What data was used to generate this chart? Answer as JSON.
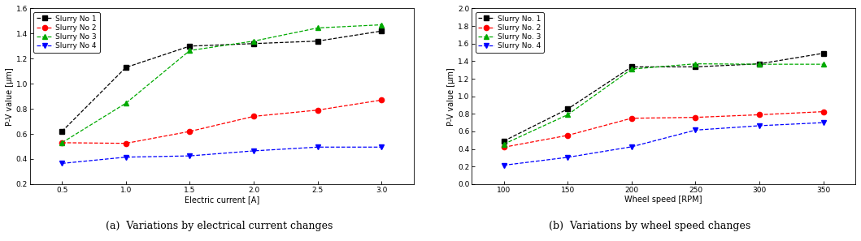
{
  "chart_a": {
    "xlabel": "Electric current [A]",
    "ylabel": "P-V value [μm]",
    "caption": "(a)  Variations by electrical current changes",
    "xlim": [
      0.25,
      3.25
    ],
    "ylim": [
      0.2,
      1.6
    ],
    "xticks": [
      0.5,
      1.0,
      1.5,
      2.0,
      2.5,
      3.0
    ],
    "yticks": [
      0.2,
      0.4,
      0.6,
      0.8,
      1.0,
      1.2,
      1.4,
      1.6
    ],
    "series": [
      {
        "label": "Slurry No 1",
        "x": [
          0.5,
          1.0,
          1.5,
          2.0,
          2.5,
          3.0
        ],
        "y": [
          0.62,
          1.13,
          1.3,
          1.32,
          1.34,
          1.42
        ],
        "color": "#000000",
        "marker": "s",
        "linestyle": "--"
      },
      {
        "label": "Slurry No 2",
        "x": [
          0.5,
          1.0,
          1.5,
          2.0,
          2.5,
          3.0
        ],
        "y": [
          0.53,
          0.525,
          0.62,
          0.74,
          0.79,
          0.87
        ],
        "color": "#ff0000",
        "marker": "o",
        "linestyle": "--"
      },
      {
        "label": "Slurry No 3",
        "x": [
          0.5,
          1.0,
          1.5,
          2.0,
          2.5,
          3.0
        ],
        "y": [
          0.53,
          0.845,
          1.265,
          1.34,
          1.445,
          1.47
        ],
        "color": "#00aa00",
        "marker": "^",
        "linestyle": "--"
      },
      {
        "label": "Slurry No 4",
        "x": [
          0.5,
          1.0,
          1.5,
          2.0,
          2.5,
          3.0
        ],
        "y": [
          0.365,
          0.415,
          0.425,
          0.465,
          0.495,
          0.495
        ],
        "color": "#0000ff",
        "marker": "v",
        "linestyle": "--"
      }
    ]
  },
  "chart_b": {
    "xlabel": "Wheel speed [RPM]",
    "ylabel": "P-V value [μm]",
    "caption": "(b)  Variations by wheel speed changes",
    "xlim": [
      75,
      375
    ],
    "ylim": [
      0.0,
      2.0
    ],
    "xticks": [
      100,
      150,
      200,
      250,
      300,
      350
    ],
    "yticks": [
      0.0,
      0.2,
      0.4,
      0.6,
      0.8,
      1.0,
      1.2,
      1.4,
      1.6,
      1.8,
      2.0
    ],
    "series": [
      {
        "label": "Slurry No. 1",
        "x": [
          100,
          150,
          200,
          250,
          300,
          350
        ],
        "y": [
          0.49,
          0.855,
          1.335,
          1.335,
          1.37,
          1.49
        ],
        "color": "#000000",
        "marker": "s",
        "linestyle": "--"
      },
      {
        "label": "Slurry No. 2",
        "x": [
          100,
          150,
          200,
          250,
          300,
          350
        ],
        "y": [
          0.42,
          0.555,
          0.75,
          0.76,
          0.79,
          0.825
        ],
        "color": "#ff0000",
        "marker": "o",
        "linestyle": "--"
      },
      {
        "label": "Slurry No. 3",
        "x": [
          100,
          150,
          200,
          250,
          300,
          350
        ],
        "y": [
          0.455,
          0.79,
          1.31,
          1.37,
          1.365,
          1.365
        ],
        "color": "#00aa00",
        "marker": "^",
        "linestyle": "--"
      },
      {
        "label": "Slurry No. 4",
        "x": [
          100,
          150,
          200,
          250,
          300,
          350
        ],
        "y": [
          0.215,
          0.305,
          0.425,
          0.615,
          0.665,
          0.7
        ],
        "color": "#0000ff",
        "marker": "v",
        "linestyle": "--"
      }
    ]
  },
  "bg_color": "#ffffff",
  "font_size_axis_label": 7,
  "font_size_tick": 6.5,
  "font_size_legend": 6.5,
  "font_size_caption": 9,
  "marker_size": 4.5,
  "linewidth": 0.9
}
